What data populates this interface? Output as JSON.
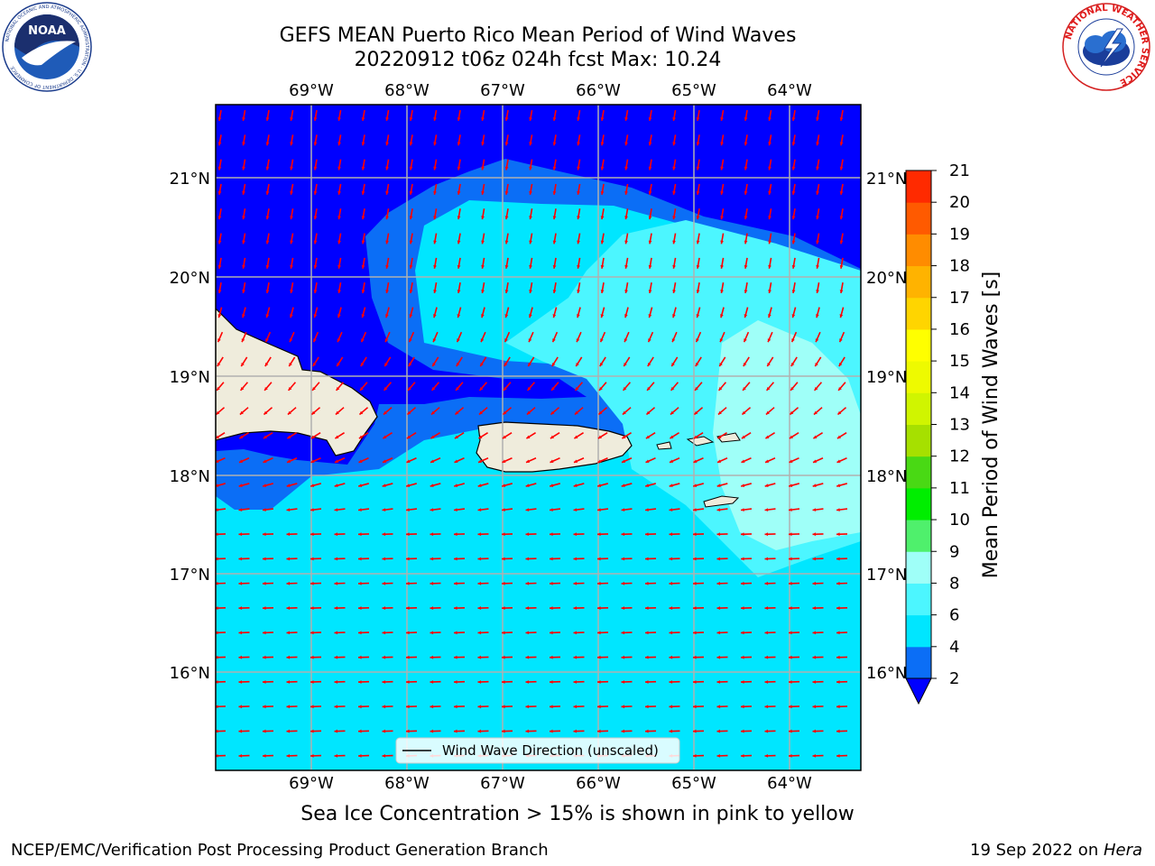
{
  "title": {
    "line1": "GEFS MEAN Puerto Rico Mean Period of Wind Waves",
    "line2": "20220912 t06z 024h fcst   Max: 10.24"
  },
  "logos": {
    "left": "NOAA",
    "left_ring_text": "NATIONAL OCEANIC AND ATMOSPHERIC ADMINISTRATION · U.S. DEPARTMENT OF COMMERCE",
    "right_ring_text": "NATIONAL WEATHER SERVICE"
  },
  "map": {
    "lon_labels": [
      "69°W",
      "68°W",
      "67°W",
      "66°W",
      "65°W",
      "64°W"
    ],
    "lat_labels": [
      "21°N",
      "20°N",
      "19°N",
      "18°N",
      "17°N",
      "16°N"
    ],
    "legend_label": "Wind Wave Direction (unscaled)"
  },
  "colorbar": {
    "label": "Mean Period of Wind Waves [s]",
    "ticks": [
      "2",
      "4",
      "6",
      "8",
      "9",
      "10",
      "11",
      "12",
      "13",
      "14",
      "15",
      "16",
      "17",
      "18",
      "19",
      "20",
      "21"
    ],
    "colors": [
      "#0b6ef6",
      "#00e6ff",
      "#4cf6ff",
      "#9ffff8",
      "#4ff06c",
      "#00ee00",
      "#49d914",
      "#a6e000",
      "#d0f500",
      "#eefa00",
      "#ffff00",
      "#ffd500",
      "#ffb300",
      "#ff8c00",
      "#ff5a00",
      "#ff2a00"
    ],
    "extend_low_color": "#0000ff"
  },
  "notes": {
    "sea_ice": "Sea Ice Concentration > 15% is shown in pink to yellow"
  },
  "footer": {
    "left": "NCEP/EMC/Verification Post Processing Product Generation Branch",
    "right_date": "19 Sep 2022 on ",
    "right_host": "Hera"
  },
  "colors": {
    "land": "#efecdc",
    "arrow": "#ff0000",
    "grid": "#b0b0b0"
  }
}
